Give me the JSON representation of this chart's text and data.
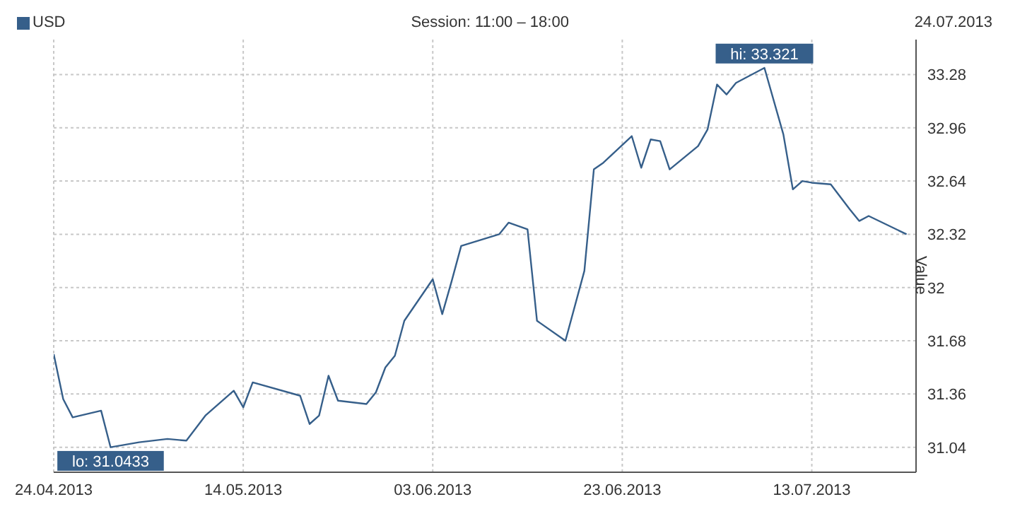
{
  "chart_data": {
    "type": "line",
    "subtitle": "Session: 11:00 – 18:00",
    "ylabel": "Value",
    "annotations": [
      "24.07.2013",
      {
        "text": "lo: 31.0433",
        "x": "2013-04-30",
        "y": 31.0433
      },
      {
        "text": "hi: 33.321",
        "x": "2013-07-08",
        "y": 33.321
      }
    ],
    "x": [
      "2013-04-24",
      "2013-04-25",
      "2013-04-26",
      "2013-04-29",
      "2013-04-30",
      "2013-05-03",
      "2013-05-06",
      "2013-05-08",
      "2013-05-10",
      "2013-05-13",
      "2013-05-14",
      "2013-05-15",
      "2013-05-20",
      "2013-05-21",
      "2013-05-22",
      "2013-05-23",
      "2013-05-24",
      "2013-05-27",
      "2013-05-28",
      "2013-05-29",
      "2013-05-30",
      "2013-05-31",
      "2013-06-03",
      "2013-06-04",
      "2013-06-05",
      "2013-06-06",
      "2013-06-10",
      "2013-06-11",
      "2013-06-13",
      "2013-06-14",
      "2013-06-17",
      "2013-06-19",
      "2013-06-20",
      "2013-06-21",
      "2013-06-24",
      "2013-06-25",
      "2013-06-26",
      "2013-06-27",
      "2013-06-28",
      "2013-07-01",
      "2013-07-02",
      "2013-07-03",
      "2013-07-04",
      "2013-07-05",
      "2013-07-08",
      "2013-07-10",
      "2013-07-11",
      "2013-07-12",
      "2013-07-13",
      "2013-07-15",
      "2013-07-17",
      "2013-07-18",
      "2013-07-19",
      "2013-07-23"
    ],
    "series": [
      {
        "name": "USD",
        "color": "#365f8a",
        "values": [
          31.6,
          31.33,
          31.22,
          31.26,
          31.04,
          31.07,
          31.09,
          31.08,
          31.23,
          31.38,
          31.28,
          31.43,
          31.35,
          31.18,
          31.23,
          31.47,
          31.32,
          31.3,
          31.37,
          31.52,
          31.59,
          31.8,
          32.05,
          31.84,
          32.04,
          32.25,
          32.32,
          32.39,
          32.35,
          31.8,
          31.68,
          32.1,
          32.71,
          32.75,
          32.91,
          32.72,
          32.89,
          32.88,
          32.71,
          32.85,
          32.95,
          33.22,
          33.16,
          33.23,
          33.32,
          32.92,
          32.59,
          32.64,
          32.63,
          32.62,
          32.47,
          32.4,
          32.43,
          32.32
        ]
      }
    ],
    "xlim": [
      "2013-04-24",
      "2013-07-24"
    ],
    "xticks": [
      {
        "value": "2013-04-24",
        "label": "24.04.2013"
      },
      {
        "value": "2013-05-14",
        "label": "14.05.2013"
      },
      {
        "value": "2013-06-03",
        "label": "03.06.2013"
      },
      {
        "value": "2013-06-23",
        "label": "23.06.2013"
      },
      {
        "value": "2013-07-13",
        "label": "13.07.2013"
      }
    ],
    "ylim": [
      30.89,
      33.49
    ],
    "yticks": [
      31.04,
      31.36,
      31.68,
      32,
      32.32,
      32.64,
      32.96,
      33.28
    ],
    "grid": true,
    "legend": "top left",
    "marker": "none",
    "line_style": "solid"
  }
}
